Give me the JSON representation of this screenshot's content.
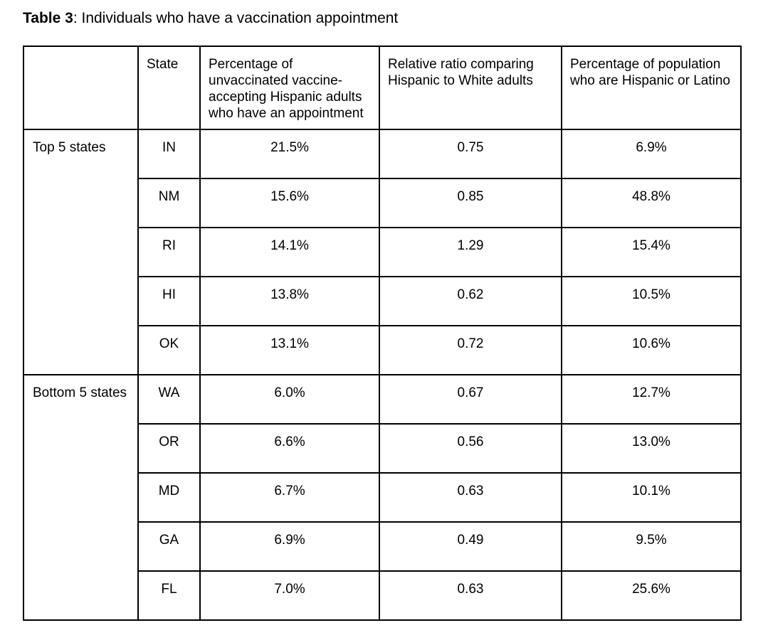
{
  "caption": {
    "label": "Table 3",
    "text": ": Individuals who have a vaccination appointment"
  },
  "chart_data": {
    "type": "table",
    "title": "Table 3: Individuals who have a vaccination appointment",
    "columns": [
      "",
      "State",
      "Percentage of unvaccinated vaccine-accepting Hispanic adults who have an appointment",
      "Relative ratio comparing Hispanic to White adults",
      "Percentage of population who are Hispanic or Latino"
    ],
    "row_groups": [
      {
        "label": "Top 5 states",
        "rows": [
          {
            "state": "IN",
            "appointment_pct": "21.5%",
            "relative_ratio": "0.75",
            "hispanic_population_pct": "6.9%"
          },
          {
            "state": "NM",
            "appointment_pct": "15.6%",
            "relative_ratio": "0.85",
            "hispanic_population_pct": "48.8%"
          },
          {
            "state": "RI",
            "appointment_pct": "14.1%",
            "relative_ratio": "1.29",
            "hispanic_population_pct": "15.4%"
          },
          {
            "state": "HI",
            "appointment_pct": "13.8%",
            "relative_ratio": "0.62",
            "hispanic_population_pct": "10.5%"
          },
          {
            "state": "OK",
            "appointment_pct": "13.1%",
            "relative_ratio": "0.72",
            "hispanic_population_pct": "10.6%"
          }
        ]
      },
      {
        "label": "Bottom 5 states",
        "rows": [
          {
            "state": "WA",
            "appointment_pct": "6.0%",
            "relative_ratio": "0.67",
            "hispanic_population_pct": "12.7%"
          },
          {
            "state": "OR",
            "appointment_pct": "6.6%",
            "relative_ratio": "0.56",
            "hispanic_population_pct": "13.0%"
          },
          {
            "state": "MD",
            "appointment_pct": "6.7%",
            "relative_ratio": "0.63",
            "hispanic_population_pct": "10.1%"
          },
          {
            "state": "GA",
            "appointment_pct": "6.9%",
            "relative_ratio": "0.49",
            "hispanic_population_pct": "9.5%"
          },
          {
            "state": "FL",
            "appointment_pct": "7.0%",
            "relative_ratio": "0.63",
            "hispanic_population_pct": "25.6%"
          }
        ]
      }
    ]
  },
  "colors": {
    "background": "#ffffff",
    "border": "#000000",
    "text": "#000000"
  }
}
